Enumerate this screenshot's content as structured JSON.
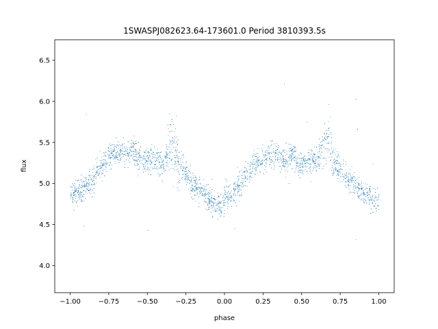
{
  "chart_data": {
    "type": "scatter",
    "title": "1SWASPJ082623.64-173601.0 Period 3810393.5s",
    "xlabel": "phase",
    "ylabel": "flux",
    "xlim": [
      -1.1,
      1.1
    ],
    "ylim": [
      3.67,
      6.75
    ],
    "x_ticks": [
      -1.0,
      -0.75,
      -0.5,
      -0.25,
      0.0,
      0.25,
      0.5,
      0.75,
      1.0
    ],
    "x_tick_labels": [
      "−1.00",
      "−0.75",
      "−0.50",
      "−0.25",
      "0.00",
      "0.25",
      "0.50",
      "0.75",
      "1.00"
    ],
    "y_ticks": [
      4.0,
      4.5,
      5.0,
      5.5,
      6.0,
      6.5
    ],
    "y_tick_labels": [
      "4.0",
      "4.5",
      "5.0",
      "5.5",
      "6.0",
      "6.5"
    ],
    "grid": false,
    "legend": "none",
    "marker_color": "#1f77b4",
    "series": [
      {
        "x": [
          -1.0,
          -0.96,
          -0.92,
          -0.88,
          -0.84,
          -0.8,
          -0.76,
          -0.72,
          -0.68,
          -0.64,
          -0.6,
          -0.56,
          -0.52,
          -0.48,
          -0.44,
          -0.4,
          -0.36,
          -0.34,
          -0.32,
          -0.3,
          -0.26,
          -0.22,
          -0.18,
          -0.14,
          -0.1,
          -0.06,
          -0.02,
          0.0,
          0.04,
          0.08,
          0.12,
          0.16,
          0.2,
          0.24,
          0.28,
          0.32,
          0.36,
          0.4,
          0.44,
          0.48,
          0.52,
          0.56,
          0.6,
          0.64,
          0.66,
          0.68,
          0.7,
          0.74,
          0.78,
          0.82,
          0.86,
          0.9,
          0.94,
          0.98,
          1.0
        ],
        "y": [
          4.85,
          4.9,
          4.95,
          5.0,
          5.08,
          5.2,
          5.3,
          5.38,
          5.4,
          5.35,
          5.42,
          5.3,
          5.25,
          5.3,
          5.32,
          5.2,
          5.45,
          5.5,
          5.4,
          5.3,
          5.15,
          5.0,
          4.95,
          4.9,
          4.8,
          4.75,
          4.72,
          4.8,
          4.85,
          4.95,
          5.05,
          5.15,
          5.25,
          5.3,
          5.35,
          5.38,
          5.32,
          5.3,
          5.35,
          5.25,
          5.25,
          5.3,
          5.28,
          5.45,
          5.55,
          5.5,
          5.35,
          5.2,
          5.1,
          5.0,
          4.95,
          4.9,
          4.85,
          4.78,
          4.8
        ]
      }
    ]
  }
}
